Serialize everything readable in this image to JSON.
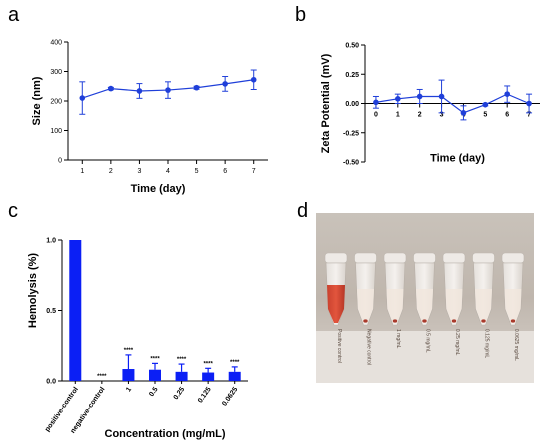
{
  "colors": {
    "series": "#1f3fd9",
    "bar": "#0b1ff5",
    "axis": "#000000"
  },
  "panels": {
    "a": {
      "letter": "a"
    },
    "b": {
      "letter": "b"
    },
    "c": {
      "letter": "c"
    },
    "d": {
      "letter": "d"
    }
  },
  "chart_data": [
    {
      "panel": "a",
      "type": "line",
      "xlabel": "Time (day)",
      "ylabel": "Size (nm)",
      "x": [
        1,
        2,
        3,
        4,
        5,
        6,
        7
      ],
      "y": [
        210,
        242,
        234,
        237,
        245,
        258,
        272
      ],
      "err": [
        55,
        4,
        25,
        28,
        5,
        25,
        33
      ],
      "xlim": [
        0.5,
        7.5
      ],
      "ylim": [
        0,
        400
      ],
      "yticks": [
        0,
        100,
        200,
        300,
        400
      ],
      "xticks": [
        1,
        2,
        3,
        4,
        5,
        6,
        7
      ],
      "grid": false
    },
    {
      "panel": "b",
      "type": "line",
      "xlabel": "Time (day)",
      "ylabel": "Zeta Potential (mV)",
      "x": [
        0,
        1,
        2,
        3,
        4,
        5,
        6,
        7
      ],
      "y": [
        0.01,
        0.04,
        0.06,
        0.06,
        -0.08,
        -0.01,
        0.08,
        0.0
      ],
      "err": [
        0.05,
        0.04,
        0.06,
        0.14,
        0.06,
        0.01,
        0.07,
        0.08
      ],
      "xlim": [
        -0.5,
        7.5
      ],
      "ylim": [
        -0.5,
        0.5
      ],
      "yticks": [
        "0.50",
        "0.25",
        "0.00",
        "-0.25",
        "-0.50"
      ],
      "xticks": [
        0,
        1,
        2,
        3,
        4,
        5,
        6,
        7
      ],
      "grid": false
    },
    {
      "panel": "c",
      "type": "bar",
      "xlabel": "Concentration (mg/mL)",
      "ylabel": "Hemolysis (%)",
      "categories": [
        "positive-control",
        "negative-control",
        "1",
        "0.5",
        "0.25",
        "0.125",
        "0.0625"
      ],
      "values": [
        1.0,
        0.0,
        0.085,
        0.08,
        0.065,
        0.06,
        0.065
      ],
      "err": [
        0.0,
        0.0,
        0.1,
        0.045,
        0.055,
        0.03,
        0.035
      ],
      "significance": [
        "",
        "****",
        "****",
        "****",
        "****",
        "****",
        "****"
      ],
      "ylim": [
        0,
        1.0
      ],
      "yticks": [
        "0.0",
        "0.5",
        "1.0"
      ],
      "grid": false
    }
  ],
  "photo": {
    "labels": [
      "Positive control",
      "Negative control",
      "1 mg/mL",
      "0.5 mg/mL",
      "0.25 mg/mL",
      "0.125 mg/mL",
      "0.0625 mg/mL"
    ]
  }
}
